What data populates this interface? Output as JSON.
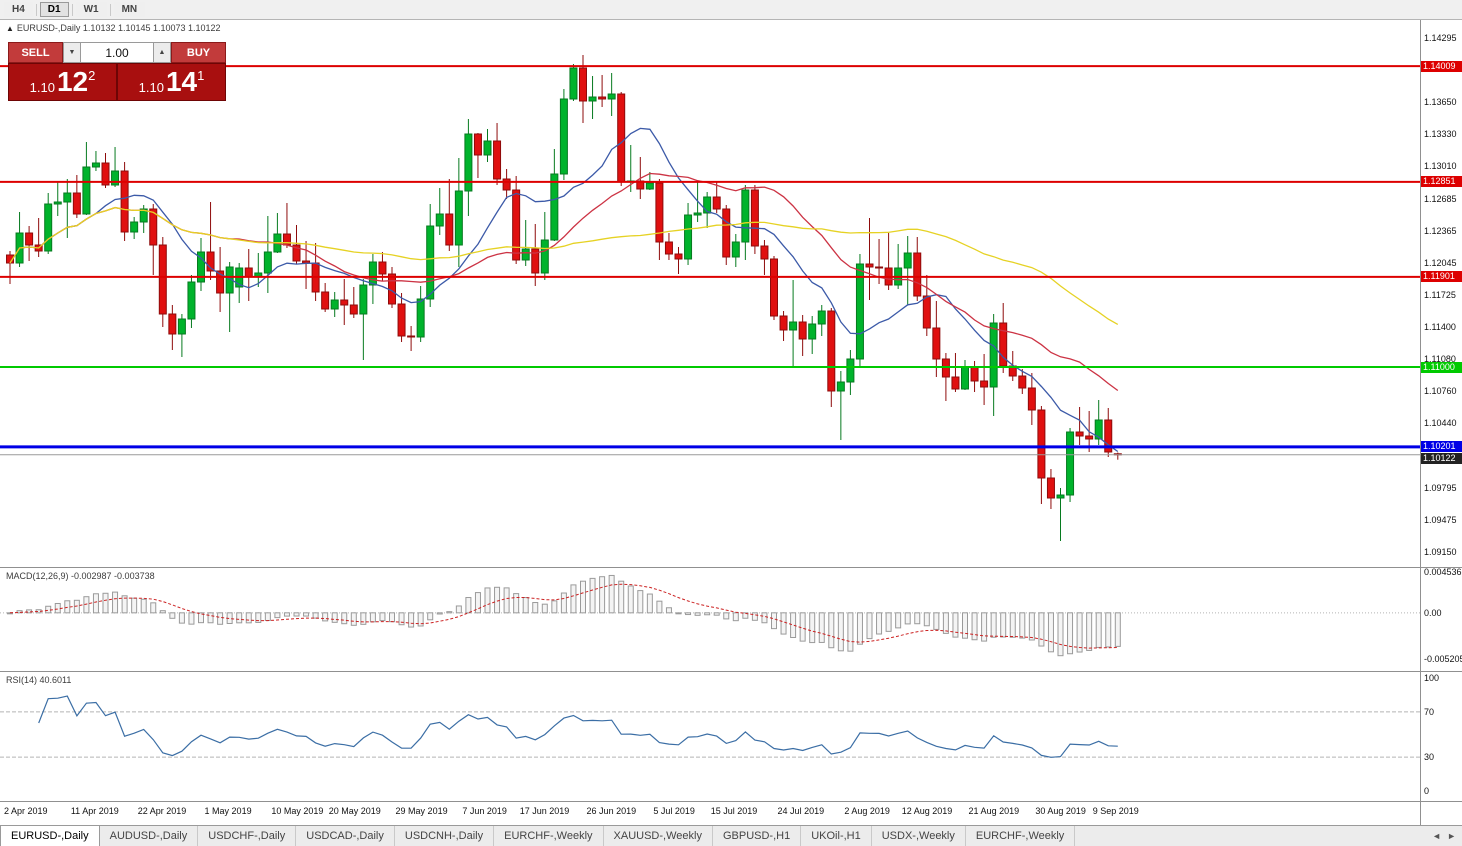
{
  "toolbar": {
    "timeframes": [
      "H4",
      "D1",
      "W1",
      "MN"
    ],
    "active": "D1"
  },
  "icons": {
    "collapse": "▲",
    "spin_down": "▼",
    "spin_up": "▲",
    "tab_scroll_left": "◄",
    "tab_scroll_right": "►"
  },
  "header": {
    "text": "EURUSD-,Daily  1.10132 1.10145 1.10073 1.10122"
  },
  "trade_panel": {
    "sell_label": "SELL",
    "buy_label": "BUY",
    "volume": "1.00",
    "sell_price": {
      "prefix": "1.10",
      "pips": "12",
      "pipette": "2"
    },
    "buy_price": {
      "prefix": "1.10",
      "pips": "14",
      "pipette": "1"
    }
  },
  "chart_data": {
    "type": "candlestick",
    "symbol": "EURUSD-,Daily",
    "ohlc": {
      "open": 1.10132,
      "high": 1.10145,
      "low": 1.10073,
      "close": 1.10122
    },
    "y_range": {
      "max": 1.1447,
      "min": 1.0899
    },
    "y_ticks": [
      "1.14295",
      "1.13650",
      "1.13330",
      "1.13010",
      "1.12685",
      "1.12365",
      "1.12045",
      "1.11725",
      "1.11400",
      "1.11080",
      "1.10760",
      "1.10440",
      "1.09795",
      "1.09475",
      "1.09150"
    ],
    "levels": [
      {
        "value": 1.14009,
        "label": "1.14009",
        "color": "#dd0000",
        "width": 2
      },
      {
        "value": 1.12851,
        "label": "1.12851",
        "color": "#dd0000",
        "width": 2
      },
      {
        "value": 1.11901,
        "label": "1.11901",
        "color": "#dd0000",
        "width": 2
      },
      {
        "value": 1.11,
        "label": "1.11000",
        "color": "#00ca00",
        "width": 2
      },
      {
        "value": 1.10201,
        "label": "1.10201",
        "color": "#0000e6",
        "width": 3
      }
    ],
    "current_price": {
      "value": 1.10122,
      "label": "1.10122",
      "line_color": "#9a9a9a",
      "bg": "#222222"
    },
    "colors": {
      "up": "#00b32c",
      "up_stroke": "#067a1f",
      "down": "#e01010",
      "down_stroke": "#8e0b0b",
      "ma_fast": "#3c5aa8",
      "ma_mid": "#cc3344",
      "ma_slow": "#e6d224",
      "macd_bar": "#9a9a9a",
      "macd_signal": "#cc2222",
      "rsi_line": "#3b6ea5"
    },
    "moving_averages": [
      {
        "period": 10,
        "color_key": "ma_fast"
      },
      {
        "period": 24,
        "color_key": "ma_mid"
      },
      {
        "period": 52,
        "color_key": "ma_slow"
      }
    ],
    "x_labels": [
      [
        "2 Apr 2019",
        0
      ],
      [
        "11 Apr 2019",
        7
      ],
      [
        "22 Apr 2019",
        14
      ],
      [
        "1 May 2019",
        21
      ],
      [
        "10 May 2019",
        28
      ],
      [
        "20 May 2019",
        34
      ],
      [
        "29 May 2019",
        41
      ],
      [
        "7 Jun 2019",
        48
      ],
      [
        "17 Jun 2019",
        54
      ],
      [
        "26 Jun 2019",
        61
      ],
      [
        "5 Jul 2019",
        68
      ],
      [
        "15 Jul 2019",
        74
      ],
      [
        "24 Jul 2019",
        81
      ],
      [
        "2 Aug 2019",
        88
      ],
      [
        "12 Aug 2019",
        94
      ],
      [
        "21 Aug 2019",
        101
      ],
      [
        "30 Aug 2019",
        108
      ],
      [
        "9 Sep 2019",
        114
      ]
    ],
    "macd": {
      "label": "MACD(12,26,9) -0.002987 -0.003738",
      "params": [
        12,
        26,
        9
      ],
      "values_text": [
        "-0.002987",
        "-0.003738"
      ],
      "axis": [
        [
          "0.004536",
          0.004536
        ],
        [
          "0.00",
          0
        ],
        [
          "-0.005205",
          -0.005205
        ]
      ],
      "range": {
        "max": 0.005,
        "min": -0.0066
      }
    },
    "rsi": {
      "label": "RSI(14) 40.6011",
      "period": 14,
      "value_text": "40.6011",
      "axis": [
        [
          "100",
          100
        ],
        [
          "70",
          70
        ],
        [
          "30",
          30
        ],
        [
          "0",
          0
        ]
      ],
      "levels": [
        70,
        30
      ],
      "range": {
        "max": 100,
        "min": 0
      }
    },
    "candles": [
      [
        "2019.04.02",
        1.1212,
        1.1216,
        1.1183,
        1.1204
      ],
      [
        "2019.04.03",
        1.1204,
        1.1255,
        1.12,
        1.1234
      ],
      [
        "2019.04.04",
        1.1234,
        1.1241,
        1.1206,
        1.1222
      ],
      [
        "2019.04.05",
        1.1222,
        1.1249,
        1.121,
        1.1216
      ],
      [
        "2019.04.08",
        1.1216,
        1.1274,
        1.1213,
        1.1263
      ],
      [
        "2019.04.09",
        1.1263,
        1.1285,
        1.1251,
        1.1265
      ],
      [
        "2019.04.10",
        1.1265,
        1.1288,
        1.1229,
        1.1274
      ],
      [
        "2019.04.11",
        1.1274,
        1.1292,
        1.1249,
        1.1253
      ],
      [
        "2019.04.12",
        1.1253,
        1.1325,
        1.1252,
        1.13
      ],
      [
        "2019.04.15",
        1.13,
        1.1316,
        1.1296,
        1.1304
      ],
      [
        "2019.04.16",
        1.1304,
        1.1314,
        1.1279,
        1.1282
      ],
      [
        "2019.04.17",
        1.1282,
        1.132,
        1.128,
        1.1296
      ],
      [
        "2019.04.18",
        1.1296,
        1.1305,
        1.1226,
        1.1235
      ],
      [
        "2019.04.19",
        1.1235,
        1.125,
        1.1228,
        1.1245
      ],
      [
        "2019.04.22",
        1.1245,
        1.1262,
        1.1234,
        1.1258
      ],
      [
        "2019.04.23",
        1.1258,
        1.1263,
        1.1192,
        1.1222
      ],
      [
        "2019.04.24",
        1.1222,
        1.123,
        1.114,
        1.1153
      ],
      [
        "2019.04.25",
        1.1153,
        1.1162,
        1.1117,
        1.1133
      ],
      [
        "2019.04.26",
        1.1133,
        1.1153,
        1.111,
        1.1148
      ],
      [
        "2019.04.29",
        1.1148,
        1.1192,
        1.1139,
        1.1185
      ],
      [
        "2019.04.30",
        1.1185,
        1.1229,
        1.1176,
        1.1215
      ],
      [
        "2019.05.01",
        1.1215,
        1.1265,
        1.1187,
        1.1196
      ],
      [
        "2019.05.02",
        1.1196,
        1.122,
        1.1155,
        1.1174
      ],
      [
        "2019.05.03",
        1.1174,
        1.1205,
        1.1135,
        1.12
      ],
      [
        "2019.05.06",
        1.118,
        1.1204,
        1.1164,
        1.1199
      ],
      [
        "2019.05.07",
        1.1199,
        1.1218,
        1.1166,
        1.119
      ],
      [
        "2019.05.08",
        1.119,
        1.1214,
        1.118,
        1.1194
      ],
      [
        "2019.05.09",
        1.1194,
        1.1251,
        1.1174,
        1.1215
      ],
      [
        "2019.05.10",
        1.1215,
        1.1254,
        1.1214,
        1.1233
      ],
      [
        "2019.05.13",
        1.1233,
        1.1264,
        1.1219,
        1.1222
      ],
      [
        "2019.05.14",
        1.1222,
        1.1242,
        1.1203,
        1.1206
      ],
      [
        "2019.05.15",
        1.1206,
        1.1226,
        1.1178,
        1.1204
      ],
      [
        "2019.05.16",
        1.1204,
        1.1224,
        1.1166,
        1.1175
      ],
      [
        "2019.05.17",
        1.1175,
        1.1184,
        1.1155,
        1.1158
      ],
      [
        "2019.05.20",
        1.1158,
        1.1175,
        1.115,
        1.1167
      ],
      [
        "2019.05.21",
        1.1167,
        1.1188,
        1.1142,
        1.1162
      ],
      [
        "2019.05.22",
        1.1162,
        1.118,
        1.1149,
        1.1153
      ],
      [
        "2019.05.23",
        1.1153,
        1.1188,
        1.1107,
        1.1182
      ],
      [
        "2019.05.24",
        1.1182,
        1.1213,
        1.1163,
        1.1205
      ],
      [
        "2019.05.27",
        1.1205,
        1.1215,
        1.1186,
        1.1193
      ],
      [
        "2019.05.28",
        1.1193,
        1.12,
        1.1159,
        1.1163
      ],
      [
        "2019.05.29",
        1.1163,
        1.1174,
        1.1125,
        1.1131
      ],
      [
        "2019.05.30",
        1.1131,
        1.1141,
        1.1116,
        1.113
      ],
      [
        "2019.05.31",
        1.113,
        1.1181,
        1.1125,
        1.1168
      ],
      [
        "2019.06.03",
        1.1168,
        1.1263,
        1.116,
        1.1241
      ],
      [
        "2019.06.04",
        1.1241,
        1.1279,
        1.1232,
        1.1253
      ],
      [
        "2019.06.05",
        1.1253,
        1.1288,
        1.1216,
        1.1222
      ],
      [
        "2019.06.06",
        1.1222,
        1.1309,
        1.12,
        1.1276
      ],
      [
        "2019.06.07",
        1.1276,
        1.1348,
        1.1251,
        1.1333
      ],
      [
        "2019.06.10",
        1.1333,
        1.1334,
        1.1289,
        1.1312
      ],
      [
        "2019.06.11",
        1.1312,
        1.1338,
        1.1305,
        1.1326
      ],
      [
        "2019.06.12",
        1.1326,
        1.1344,
        1.1282,
        1.1288
      ],
      [
        "2019.06.13",
        1.1288,
        1.1298,
        1.1268,
        1.1277
      ],
      [
        "2019.06.14",
        1.1277,
        1.1291,
        1.1203,
        1.1207
      ],
      [
        "2019.06.17",
        1.1207,
        1.1247,
        1.1201,
        1.1218
      ],
      [
        "2019.06.18",
        1.1218,
        1.1243,
        1.1181,
        1.1194
      ],
      [
        "2019.06.19",
        1.1194,
        1.1255,
        1.1187,
        1.1227
      ],
      [
        "2019.06.20",
        1.1227,
        1.1318,
        1.1226,
        1.1293
      ],
      [
        "2019.06.21",
        1.1293,
        1.1378,
        1.1287,
        1.1368
      ],
      [
        "2019.06.24",
        1.1368,
        1.1403,
        1.1366,
        1.1399
      ],
      [
        "2019.06.25",
        1.1399,
        1.1412,
        1.1344,
        1.1366
      ],
      [
        "2019.06.26",
        1.1366,
        1.1391,
        1.1348,
        1.137
      ],
      [
        "2019.06.27",
        1.137,
        1.1392,
        1.136,
        1.1368
      ],
      [
        "2019.06.28",
        1.1368,
        1.1394,
        1.1351,
        1.1373
      ],
      [
        "2019.07.01",
        1.1373,
        1.1375,
        1.1281,
        1.1285
      ],
      [
        "2019.07.02",
        1.1285,
        1.1322,
        1.1275,
        1.1286
      ],
      [
        "2019.07.03",
        1.1286,
        1.131,
        1.1268,
        1.1278
      ],
      [
        "2019.07.04",
        1.1278,
        1.1295,
        1.1277,
        1.1284
      ],
      [
        "2019.07.05",
        1.1284,
        1.1288,
        1.1207,
        1.1225
      ],
      [
        "2019.07.08",
        1.1225,
        1.1234,
        1.1207,
        1.1213
      ],
      [
        "2019.07.09",
        1.1213,
        1.122,
        1.1193,
        1.1208
      ],
      [
        "2019.07.10",
        1.1208,
        1.1264,
        1.1202,
        1.1252
      ],
      [
        "2019.07.11",
        1.1252,
        1.1286,
        1.1245,
        1.1254
      ],
      [
        "2019.07.12",
        1.1254,
        1.1275,
        1.1239,
        1.127
      ],
      [
        "2019.07.15",
        1.127,
        1.1285,
        1.1254,
        1.1258
      ],
      [
        "2019.07.16",
        1.1258,
        1.1262,
        1.1202,
        1.121
      ],
      [
        "2019.07.17",
        1.121,
        1.1233,
        1.12,
        1.1225
      ],
      [
        "2019.07.18",
        1.1225,
        1.1282,
        1.1207,
        1.1277
      ],
      [
        "2019.07.19",
        1.1277,
        1.1282,
        1.1213,
        1.1221
      ],
      [
        "2019.07.22",
        1.1221,
        1.1227,
        1.1192,
        1.1208
      ],
      [
        "2019.07.23",
        1.1208,
        1.1211,
        1.1147,
        1.1151
      ],
      [
        "2019.07.24",
        1.1151,
        1.1156,
        1.1126,
        1.1137
      ],
      [
        "2019.07.25",
        1.1137,
        1.1187,
        1.1101,
        1.1145
      ],
      [
        "2019.07.26",
        1.1145,
        1.1152,
        1.1111,
        1.1128
      ],
      [
        "2019.07.29",
        1.1128,
        1.1151,
        1.1113,
        1.1143
      ],
      [
        "2019.07.30",
        1.1143,
        1.1162,
        1.1131,
        1.1156
      ],
      [
        "2019.07.31",
        1.1156,
        1.1159,
        1.106,
        1.1076
      ],
      [
        "2019.08.01",
        1.1076,
        1.1096,
        1.1027,
        1.1085
      ],
      [
        "2019.08.02",
        1.1085,
        1.1117,
        1.1072,
        1.1108
      ],
      [
        "2019.08.05",
        1.1108,
        1.1213,
        1.1101,
        1.1203
      ],
      [
        "2019.08.06",
        1.1203,
        1.1249,
        1.1167,
        1.12
      ],
      [
        "2019.08.07",
        1.12,
        1.1228,
        1.1183,
        1.1199
      ],
      [
        "2019.08.08",
        1.1199,
        1.1234,
        1.1177,
        1.1182
      ],
      [
        "2019.08.09",
        1.1182,
        1.1223,
        1.1178,
        1.1199
      ],
      [
        "2019.08.12",
        1.1199,
        1.1231,
        1.1162,
        1.1214
      ],
      [
        "2019.08.13",
        1.1214,
        1.123,
        1.1166,
        1.1171
      ],
      [
        "2019.08.14",
        1.1171,
        1.1192,
        1.1131,
        1.1139
      ],
      [
        "2019.08.15",
        1.1139,
        1.1166,
        1.109,
        1.1108
      ],
      [
        "2019.08.16",
        1.1108,
        1.1114,
        1.1066,
        1.109
      ],
      [
        "2019.08.19",
        1.109,
        1.1114,
        1.1075,
        1.1078
      ],
      [
        "2019.08.20",
        1.1078,
        1.1107,
        1.1077,
        1.11
      ],
      [
        "2019.08.21",
        1.11,
        1.1106,
        1.1075,
        1.1086
      ],
      [
        "2019.08.22",
        1.1086,
        1.1113,
        1.1062,
        1.108
      ],
      [
        "2019.08.23",
        1.108,
        1.1153,
        1.1051,
        1.1144
      ],
      [
        "2019.08.26",
        1.1144,
        1.1164,
        1.1094,
        1.1101
      ],
      [
        "2019.08.27",
        1.1101,
        1.1116,
        1.1086,
        1.1091
      ],
      [
        "2019.08.28",
        1.1091,
        1.1098,
        1.1073,
        1.1079
      ],
      [
        "2019.08.29",
        1.1079,
        1.1094,
        1.1042,
        1.1057
      ],
      [
        "2019.08.30",
        1.1057,
        1.1061,
        1.0963,
        1.0989
      ],
      [
        "2019.09.02",
        1.0989,
        1.0998,
        1.0958,
        1.0969
      ],
      [
        "2019.09.03",
        1.0969,
        1.0979,
        1.0926,
        1.0972
      ],
      [
        "2019.09.04",
        1.0972,
        1.1039,
        1.0965,
        1.1035
      ],
      [
        "2019.09.05",
        1.1035,
        1.106,
        1.1022,
        1.1031
      ],
      [
        "2019.09.06",
        1.1031,
        1.1056,
        1.1015,
        1.1028
      ],
      [
        "2019.09.09",
        1.1028,
        1.1067,
        1.1022,
        1.1047
      ],
      [
        "2019.09.10",
        1.1047,
        1.1059,
        1.101,
        1.1015
      ],
      [
        "2019.09.11",
        1.10132,
        1.10145,
        1.10073,
        1.10122
      ]
    ]
  },
  "tabs": {
    "active": 0,
    "items": [
      "EURUSD-,Daily",
      "AUDUSD-,Daily",
      "USDCHF-,Daily",
      "USDCAD-,Daily",
      "USDCNH-,Daily",
      "EURCHF-,Weekly",
      "XAUUSD-,Weekly",
      "GBPUSD-,H1",
      "UKOil-,H1",
      "USDX-,Weekly",
      "EURCHF-,Weekly"
    ]
  }
}
